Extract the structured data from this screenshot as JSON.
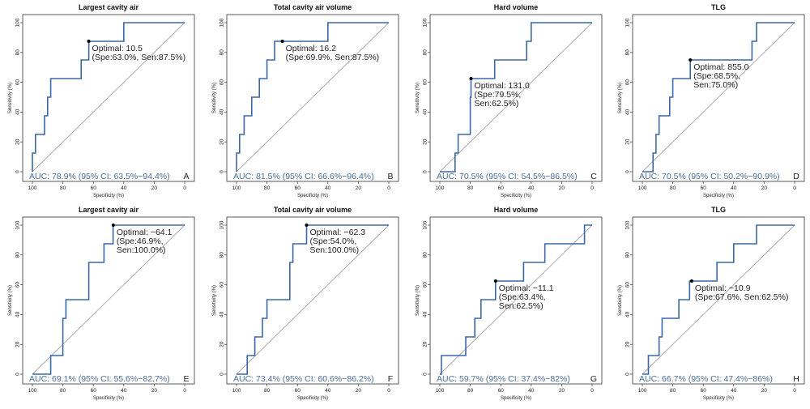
{
  "colors": {
    "roc": "#3b68a8",
    "diagonal": "#a8a8a8",
    "auc_text": "#4a6f99",
    "frame": "#333333"
  },
  "chart_data": [
    {
      "type": "line",
      "letter": "A",
      "title": "Largest cavity air",
      "xlabel": "Specificity (%)",
      "ylabel": "Sensitivity (%)",
      "xlim": [
        100,
        0
      ],
      "ylim": [
        0,
        100
      ],
      "xticks": [
        100,
        80,
        60,
        40,
        20,
        0
      ],
      "yticks": [
        0,
        20,
        40,
        60,
        80,
        100
      ],
      "series": [
        {
          "x": [
            100,
            100,
            98,
            98,
            92,
            92,
            90,
            90,
            88,
            88,
            68,
            68,
            63,
            63,
            40,
            40,
            0
          ],
          "y": [
            0,
            12.5,
            12.5,
            25,
            25,
            37.5,
            37.5,
            50,
            50,
            62.5,
            62.5,
            75,
            75,
            87.5,
            87.5,
            100,
            100
          ]
        }
      ],
      "optimal": {
        "x": 63,
        "y": 87.5
      },
      "annotation": [
        "Optimal: 10.5",
        "(Spe:63.0%, Sen:87.5%)"
      ],
      "auc": "AUC: 78.9% (95% CI: 63.5%−94.4%)"
    },
    {
      "type": "line",
      "letter": "B",
      "title": "Total cavity air volume",
      "xlabel": "Specificity (%)",
      "ylabel": "Sensitivity (%)",
      "xlim": [
        100,
        0
      ],
      "ylim": [
        0,
        100
      ],
      "xticks": [
        100,
        80,
        60,
        40,
        20,
        0
      ],
      "yticks": [
        0,
        20,
        40,
        60,
        80,
        100
      ],
      "series": [
        {
          "x": [
            100,
            100,
            98,
            98,
            95,
            95,
            90,
            90,
            85,
            85,
            80,
            80,
            75,
            75,
            70,
            70,
            40,
            40,
            0
          ],
          "y": [
            0,
            12.5,
            12.5,
            25,
            25,
            37.5,
            37.5,
            50,
            50,
            62.5,
            62.5,
            75,
            75,
            87.5,
            87.5,
            87.5,
            87.5,
            100,
            100
          ]
        }
      ],
      "optimal": {
        "x": 69.9,
        "y": 87.5
      },
      "annotation": [
        "Optimal: 16.2",
        "(Spe:69.9%, Sen:87.5%)"
      ],
      "auc": "AUC: 81.5% (95% CI: 66.6%−96.4%)"
    },
    {
      "type": "line",
      "letter": "C",
      "title": "Hard volume",
      "xlabel": "Specificity (%)",
      "ylabel": "Sensitivity (%)",
      "xlim": [
        100,
        0
      ],
      "ylim": [
        0,
        100
      ],
      "xticks": [
        100,
        80,
        60,
        40,
        20,
        0
      ],
      "yticks": [
        0,
        20,
        40,
        60,
        80,
        100
      ],
      "series": [
        {
          "x": [
            100,
            90,
            90,
            88,
            88,
            80,
            80,
            79.5,
            79.5,
            64,
            64,
            43,
            43,
            40,
            40,
            0
          ],
          "y": [
            0,
            0,
            12.5,
            12.5,
            25,
            25,
            50,
            50,
            62.5,
            62.5,
            75,
            75,
            87.5,
            87.5,
            100,
            100
          ]
        }
      ],
      "optimal": {
        "x": 79.5,
        "y": 62.5
      },
      "annotation": [
        "Optimal: 131.0",
        "(Spe:79.5%,",
        "Sen:62.5%)"
      ],
      "auc": "AUC: 70.5% (95% CI: 54.5%−86.5%)"
    },
    {
      "type": "line",
      "letter": "D",
      "title": "TLG",
      "xlabel": "Specificity (%)",
      "ylabel": "Sensitivity (%)",
      "xlim": [
        100,
        0
      ],
      "ylim": [
        0,
        100
      ],
      "xticks": [
        100,
        80,
        60,
        40,
        20,
        0
      ],
      "yticks": [
        0,
        20,
        40,
        60,
        80,
        100
      ],
      "series": [
        {
          "x": [
            100,
            93,
            93,
            91,
            91,
            89,
            89,
            82,
            82,
            80,
            80,
            68.5,
            68.5,
            28,
            28,
            25,
            25,
            0
          ],
          "y": [
            0,
            0,
            12.5,
            12.5,
            25,
            25,
            37.5,
            37.5,
            50,
            50,
            62.5,
            62.5,
            75,
            75,
            87.5,
            87.5,
            100,
            100
          ]
        }
      ],
      "optimal": {
        "x": 68.5,
        "y": 75
      },
      "annotation": [
        "Optimal: 855.0",
        "(Spe:68.5%,",
        "Sen:75.0%)"
      ],
      "auc": "AUC: 70.5% (95% CI: 50.2%−90.9%)"
    },
    {
      "type": "line",
      "letter": "E",
      "title": "Largest cavity air",
      "xlabel": "Specificity (%)",
      "ylabel": "Sensitivity (%)",
      "xlim": [
        100,
        0
      ],
      "ylim": [
        0,
        100
      ],
      "xticks": [
        100,
        80,
        60,
        40,
        20,
        0
      ],
      "yticks": [
        0,
        20,
        40,
        60,
        80,
        100
      ],
      "series": [
        {
          "x": [
            100,
            88,
            88,
            80,
            80,
            78,
            78,
            63,
            63,
            53,
            53,
            47,
            47,
            0
          ],
          "y": [
            0,
            0,
            12.5,
            12.5,
            37.5,
            37.5,
            50,
            50,
            75,
            75,
            87.5,
            87.5,
            100,
            100
          ]
        }
      ],
      "optimal": {
        "x": 46.9,
        "y": 100
      },
      "annotation": [
        "Optimal: −64.1",
        "(Spe:46.9%,",
        "Sen:100.0%)"
      ],
      "auc": "AUC: 69.1% (95% CI: 55.6%−82.7%)"
    },
    {
      "type": "line",
      "letter": "F",
      "title": "Total cavity air volume",
      "xlabel": "Specificity (%)",
      "ylabel": "Sensitivity (%)",
      "xlim": [
        100,
        0
      ],
      "ylim": [
        0,
        100
      ],
      "xticks": [
        100,
        80,
        60,
        40,
        20,
        0
      ],
      "yticks": [
        0,
        20,
        40,
        60,
        80,
        100
      ],
      "series": [
        {
          "x": [
            100,
            93,
            93,
            88,
            88,
            83,
            83,
            80,
            80,
            65,
            65,
            63,
            63,
            54,
            54,
            0
          ],
          "y": [
            0,
            0,
            12.5,
            12.5,
            25,
            25,
            37.5,
            37.5,
            50,
            50,
            75,
            75,
            87.5,
            87.5,
            100,
            100
          ]
        }
      ],
      "optimal": {
        "x": 54,
        "y": 100
      },
      "annotation": [
        "Optimal: −62.3",
        "(Spe:54.0%,",
        "Sen:100.0%)"
      ],
      "auc": "AUC: 73.4% (95% CI: 60.6%−86.2%)"
    },
    {
      "type": "line",
      "letter": "G",
      "title": "Hard volume",
      "xlabel": "Specificity (%)",
      "ylabel": "Sensitivity (%)",
      "xlim": [
        100,
        0
      ],
      "ylim": [
        0,
        100
      ],
      "xticks": [
        100,
        80,
        60,
        40,
        20,
        0
      ],
      "yticks": [
        0,
        20,
        40,
        60,
        80,
        100
      ],
      "series": [
        {
          "x": [
            100,
            99,
            99,
            83,
            83,
            77,
            77,
            73,
            73,
            63.4,
            63.4,
            45,
            45,
            31,
            31,
            5,
            5,
            0
          ],
          "y": [
            0,
            0,
            12.5,
            12.5,
            25,
            25,
            37.5,
            37.5,
            50,
            50,
            62.5,
            62.5,
            75,
            75,
            87.5,
            87.5,
            100,
            100
          ]
        }
      ],
      "optimal": {
        "x": 63.4,
        "y": 62.5
      },
      "annotation": [
        "Optimal: −11.1",
        "(Spe:63.4%,",
        "Sen:62.5%)"
      ],
      "auc": "AUC: 59.7% (95% CI: 37.4%−82%)"
    },
    {
      "type": "line",
      "letter": "H",
      "title": "TLG",
      "xlabel": "Specificity (%)",
      "ylabel": "Sensitivity (%)",
      "xlim": [
        100,
        0
      ],
      "ylim": [
        0,
        100
      ],
      "xticks": [
        100,
        80,
        60,
        40,
        20,
        0
      ],
      "yticks": [
        0,
        20,
        40,
        60,
        80,
        100
      ],
      "series": [
        {
          "x": [
            100,
            96,
            96,
            89,
            89,
            87,
            87,
            76,
            76,
            69,
            69,
            51,
            51,
            40,
            40,
            25,
            25,
            0
          ],
          "y": [
            0,
            0,
            12.5,
            12.5,
            25,
            25,
            37.5,
            37.5,
            50,
            50,
            62.5,
            62.5,
            75,
            75,
            87.5,
            87.5,
            100,
            100
          ]
        }
      ],
      "optimal": {
        "x": 67.6,
        "y": 62.5
      },
      "annotation": [
        "Optimal: −10.9",
        "(Spe:67.6%, Sen:62.5%)"
      ],
      "auc": "AUC: 66.7% (95% CI: 47.4%−86%)"
    }
  ]
}
